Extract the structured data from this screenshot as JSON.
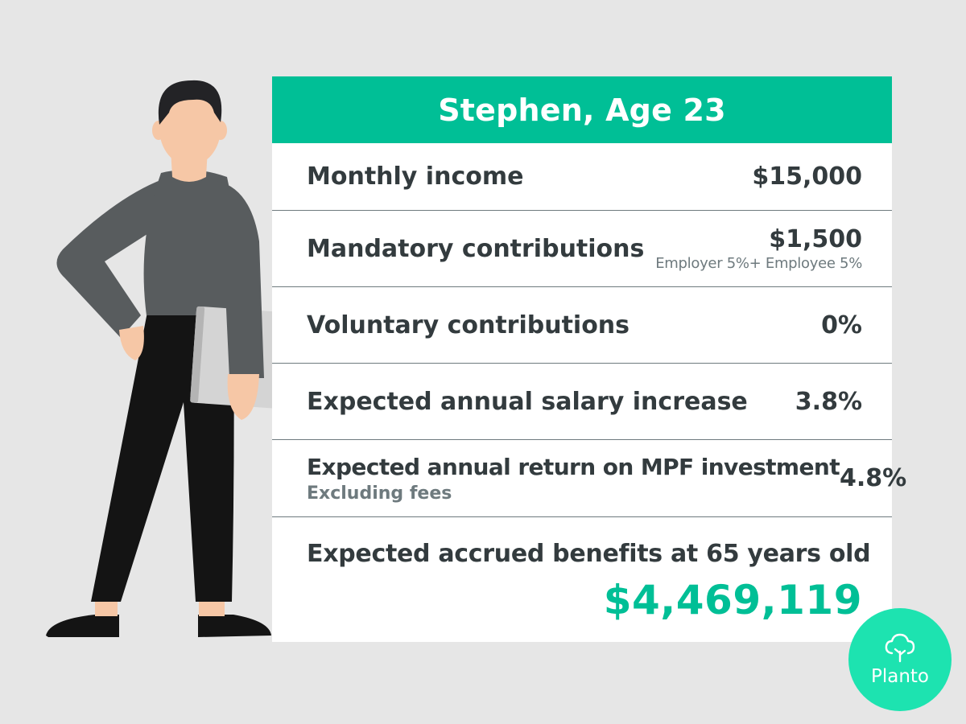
{
  "card": {
    "title": "Stephen, Age 23",
    "rows": [
      {
        "label": "Monthly income",
        "value": "$15,000"
      },
      {
        "label": "Mandatory contributions",
        "value": "$1,500",
        "note": "Employer 5%+ Employee 5%"
      },
      {
        "label": "Voluntary contributions",
        "value": "0%"
      },
      {
        "label": "Expected annual salary increase",
        "value": "3.8%"
      },
      {
        "label": "Expected annual return on MPF investment",
        "value": "4.8%",
        "note": "Excluding fees"
      }
    ],
    "final": {
      "label": "Expected accrued benefits at 65 years old",
      "value": "$4,469,119"
    }
  },
  "brand": {
    "name": "Planto",
    "icon": "cloud-tree-icon"
  },
  "illustration": {
    "icon": "person-holding-laptop-illustration"
  },
  "colors": {
    "accent": "#00bf96",
    "logo": "#1de3b0",
    "text": "#333b3e",
    "muted": "#6e7a7e",
    "background": "#e6e6e6"
  }
}
